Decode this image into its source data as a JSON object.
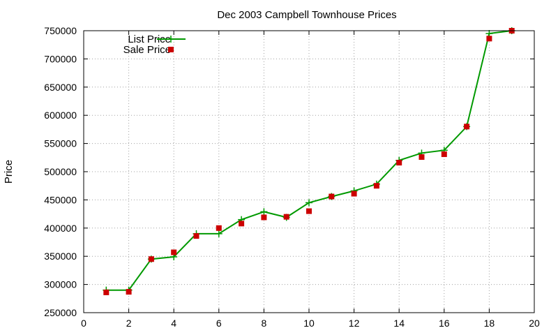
{
  "chart_data": {
    "type": "line",
    "title": "Dec 2003 Campbell Townhouse Prices",
    "xlabel": "",
    "ylabel": "Price",
    "xlim": [
      0,
      20
    ],
    "ylim": [
      250000,
      750000
    ],
    "x_ticks": [
      0,
      2,
      4,
      6,
      8,
      10,
      12,
      14,
      16,
      18,
      20
    ],
    "y_ticks": [
      250000,
      300000,
      350000,
      400000,
      450000,
      500000,
      550000,
      600000,
      650000,
      700000,
      750000
    ],
    "grid": true,
    "legend_position": "top-left",
    "series": [
      {
        "name": "List Price",
        "style": "line-with-plus-markers",
        "color": "#009900",
        "x": [
          1,
          2,
          3,
          4,
          5,
          6,
          7,
          8,
          9,
          10,
          11,
          12,
          13,
          14,
          15,
          16,
          17,
          18,
          19
        ],
        "y": [
          290000,
          290000,
          345000,
          349000,
          390000,
          390000,
          415000,
          429000,
          419000,
          445000,
          456000,
          466000,
          478000,
          520000,
          533000,
          538000,
          580000,
          745000,
          750000
        ]
      },
      {
        "name": "Sale Price",
        "style": "square-points",
        "color": "#cc0000",
        "x": [
          1,
          2,
          3,
          4,
          5,
          6,
          7,
          8,
          9,
          10,
          11,
          12,
          13,
          14,
          15,
          16,
          17,
          18,
          19
        ],
        "y": [
          286000,
          287000,
          345000,
          357000,
          386000,
          400000,
          408000,
          419000,
          420000,
          430000,
          456000,
          461000,
          475000,
          516000,
          526000,
          531000,
          580000,
          736000,
          750000
        ]
      }
    ]
  }
}
